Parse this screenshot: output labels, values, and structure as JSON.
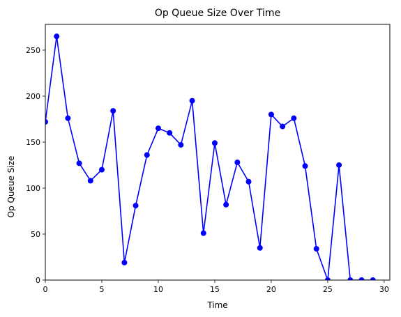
{
  "chart_data": {
    "type": "line",
    "title": "Op Queue Size Over Time",
    "xlabel": "Time",
    "ylabel": "Op Queue Size",
    "xlim": [
      0,
      30.5
    ],
    "ylim": [
      0,
      278
    ],
    "xticks": [
      0,
      5,
      10,
      15,
      20,
      25,
      30
    ],
    "yticks": [
      0,
      50,
      100,
      150,
      200,
      250
    ],
    "grid": false,
    "series": [
      {
        "color": "#0000ff",
        "marker": "circle",
        "x": [
          0,
          1,
          2,
          3,
          4,
          5,
          6,
          7,
          8,
          9,
          10,
          11,
          12,
          13,
          14,
          15,
          16,
          17,
          18,
          19,
          20,
          21,
          22,
          23,
          24,
          25,
          26,
          27,
          28,
          29
        ],
        "y": [
          172,
          265,
          176,
          127,
          108,
          120,
          184,
          19,
          81,
          136,
          165,
          160,
          147,
          195,
          51,
          149,
          82,
          128,
          107,
          35,
          180,
          167,
          176,
          124,
          34,
          0,
          125,
          0,
          0,
          0
        ]
      }
    ]
  }
}
